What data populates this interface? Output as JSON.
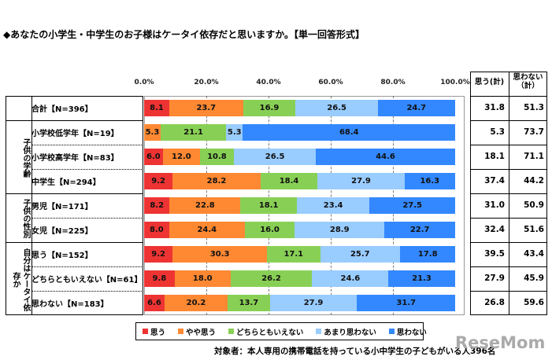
{
  "title": "◆あなたの小学生・中学生のお子様はケータイ依存だと思いますか。【単一回答形式】",
  "chart_data": {
    "type": "bar",
    "stacked": true,
    "orientation": "horizontal",
    "xlim": [
      0,
      100
    ],
    "tick_labels": [
      "0.0%",
      "20.0%",
      "40.0%",
      "60.0%",
      "80.0%",
      "100.0%"
    ],
    "grid": true,
    "legend_position": "bottom",
    "series": [
      {
        "name": "思う",
        "color": "#ee3333"
      },
      {
        "name": "やや思う",
        "color": "#ff8833"
      },
      {
        "name": "どちらともいえない",
        "color": "#88d055"
      },
      {
        "name": "あまり思わない",
        "color": "#99ccff"
      },
      {
        "name": "思わない",
        "color": "#3388ff"
      }
    ],
    "groups": [
      {
        "label": "",
        "rows": [
          0
        ]
      },
      {
        "label": "子供の学齢",
        "rows": [
          1,
          2,
          3
        ]
      },
      {
        "label": "子供の性別",
        "rows": [
          4,
          5
        ]
      },
      {
        "label": "自分はケータイ依存か",
        "rows": [
          6,
          7,
          8
        ]
      }
    ],
    "rows": [
      {
        "label": "合計【N=396】",
        "values": [
          8.1,
          23.7,
          16.9,
          26.5,
          24.7
        ],
        "agree_total": "31.8",
        "disagree_total": "51.3"
      },
      {
        "label": "小学校低学年【N=19】",
        "values": [
          0,
          5.3,
          21.1,
          5.3,
          68.4
        ],
        "agree_total": "5.3",
        "disagree_total": "73.7"
      },
      {
        "label": "小学校高学年【N=83】",
        "values": [
          6.0,
          12.0,
          10.8,
          26.5,
          44.6
        ],
        "agree_total": "18.1",
        "disagree_total": "71.1"
      },
      {
        "label": "中学生【N=294】",
        "values": [
          9.2,
          28.2,
          18.4,
          27.9,
          16.3
        ],
        "agree_total": "37.4",
        "disagree_total": "44.2"
      },
      {
        "label": "男児【N=171】",
        "values": [
          8.2,
          22.8,
          18.1,
          23.4,
          27.5
        ],
        "agree_total": "31.0",
        "disagree_total": "50.9"
      },
      {
        "label": "女児【N=225】",
        "values": [
          8.0,
          24.4,
          16.0,
          28.9,
          22.7
        ],
        "agree_total": "32.4",
        "disagree_total": "51.6"
      },
      {
        "label": "思う【N=152】",
        "values": [
          9.2,
          30.3,
          17.1,
          25.7,
          17.8
        ],
        "agree_total": "39.5",
        "disagree_total": "43.4"
      },
      {
        "label": "どちらともいえない【N=61】",
        "values": [
          9.8,
          18.0,
          26.2,
          24.6,
          21.3
        ],
        "agree_total": "27.9",
        "disagree_total": "45.9"
      },
      {
        "label": "思わない【N=183】",
        "values": [
          6.6,
          20.2,
          13.7,
          27.9,
          31.7
        ],
        "agree_total": "26.8",
        "disagree_total": "59.6"
      }
    ],
    "total_headers": [
      "思う(計)",
      "思わない（計）"
    ]
  },
  "footnote": "対象者：本人専用の携帯電話を持っている小中学生の子どもがいる人396名",
  "watermark": "ReseMom"
}
